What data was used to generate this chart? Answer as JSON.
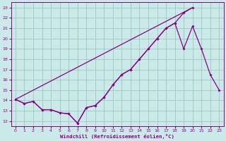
{
  "title": "",
  "xlabel": "Windchill (Refroidissement éolien,°C)",
  "ylabel": "",
  "background_color": "#cce9e9",
  "grid_color": "#99ccbb",
  "line_color": "#880088",
  "xlim": [
    -0.5,
    23.5
  ],
  "ylim": [
    11.5,
    23.5
  ],
  "xticks": [
    0,
    1,
    2,
    3,
    4,
    5,
    6,
    7,
    8,
    9,
    10,
    11,
    12,
    13,
    14,
    15,
    16,
    17,
    18,
    19,
    20,
    21,
    22,
    23
  ],
  "yticks": [
    12,
    13,
    14,
    15,
    16,
    17,
    18,
    19,
    20,
    21,
    22,
    23
  ],
  "series1_x": [
    0,
    1,
    2,
    3,
    4,
    5,
    6,
    7,
    8,
    9,
    10,
    11,
    12,
    13,
    14,
    15,
    16,
    17,
    18,
    19,
    20
  ],
  "series1_y": [
    14.1,
    13.7,
    13.9,
    13.1,
    13.1,
    12.8,
    12.7,
    11.8,
    13.3,
    13.5,
    14.3,
    15.5,
    16.5,
    17.0,
    18.0,
    19.0,
    20.0,
    21.0,
    21.5,
    22.5,
    23.0
  ],
  "series2_x": [
    0,
    1,
    2,
    3,
    4,
    5,
    6,
    7,
    8,
    9,
    10,
    11,
    12,
    13,
    14,
    15,
    16,
    17,
    18,
    19,
    20,
    21,
    22,
    23
  ],
  "series2_y": [
    14.1,
    13.7,
    13.9,
    13.1,
    13.1,
    12.8,
    12.7,
    11.8,
    13.3,
    13.5,
    14.3,
    15.5,
    16.5,
    17.0,
    18.0,
    19.0,
    20.0,
    21.0,
    21.5,
    19.0,
    21.2,
    19.0,
    16.5,
    15.0
  ],
  "series3_x": [
    0,
    20
  ],
  "series3_y": [
    14.1,
    23.0
  ]
}
